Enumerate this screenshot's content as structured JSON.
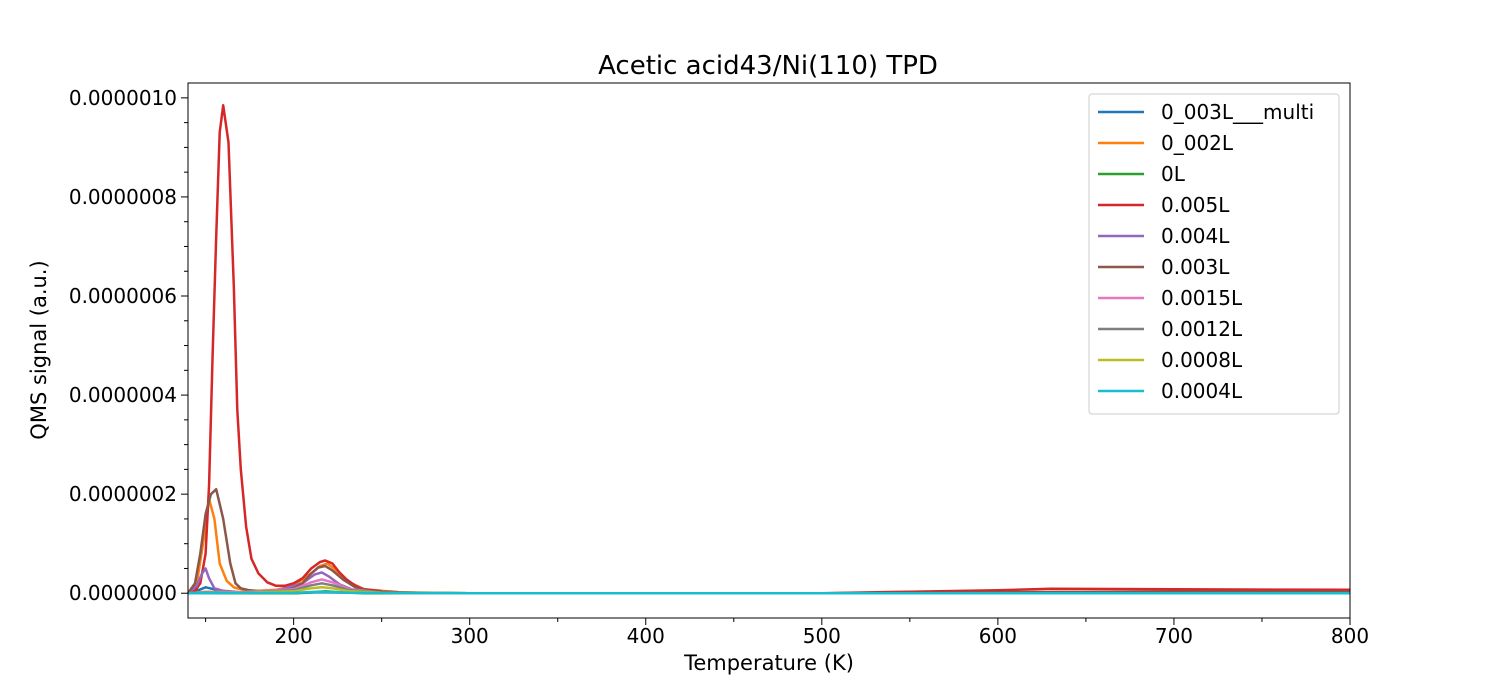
{
  "chart_data": {
    "type": "line",
    "title": "Acetic acid43/Ni(110) TPD",
    "xlabel": "Temperature (K)",
    "ylabel": "QMS signal (a.u.)",
    "xlim": [
      140,
      800
    ],
    "ylim": [
      -5e-08,
      1.03e-06
    ],
    "xticks": [
      200,
      300,
      400,
      500,
      600,
      700,
      800
    ],
    "xtick_labels": [
      "200",
      "300",
      "400",
      "500",
      "600",
      "700",
      "800"
    ],
    "yticks": [
      0,
      2e-07,
      4e-07,
      6e-07,
      8e-07,
      1e-06
    ],
    "ytick_labels": [
      "0.0000000",
      "0.0000002",
      "0.0000004",
      "0.0000006",
      "0.0000008",
      "0.0000010"
    ],
    "grid": false,
    "legend_position": "top-right",
    "series": [
      {
        "name": "0_003L___multi",
        "color": "#1f77b4",
        "x": [
          140,
          145,
          150,
          155,
          160,
          170,
          200,
          215,
          230,
          260,
          300,
          400,
          500,
          600,
          700,
          800
        ],
        "y": [
          0,
          5e-09,
          1.2e-08,
          8e-09,
          3e-09,
          1e-09,
          0,
          2e-09,
          1e-09,
          0,
          0,
          0,
          0,
          0,
          0,
          0
        ]
      },
      {
        "name": "0_002L",
        "color": "#ff7f0e",
        "x": [
          140,
          145,
          149,
          152,
          155,
          158,
          162,
          166,
          172,
          180,
          190,
          200,
          210,
          215,
          219,
          223,
          230,
          240,
          260,
          300,
          400,
          500,
          800
        ],
        "y": [
          0,
          2e-08,
          1.1e-07,
          1.9e-07,
          1.5e-07,
          6e-08,
          2.5e-08,
          1.2e-08,
          6e-09,
          5e-09,
          7e-09,
          1.5e-08,
          4e-08,
          5.5e-08,
          6e-08,
          5e-08,
          2.5e-08,
          8e-09,
          2e-09,
          0,
          0,
          0,
          0
        ]
      },
      {
        "name": "0L",
        "color": "#2ca02c",
        "x": [
          140,
          200,
          210,
          218,
          226,
          240,
          300,
          800
        ],
        "y": [
          0,
          0,
          2e-09,
          4e-09,
          2e-09,
          0,
          0,
          0
        ]
      },
      {
        "name": "0.005L",
        "color": "#d62728",
        "x": [
          140,
          144,
          147,
          150,
          152,
          154,
          156,
          158,
          160,
          163,
          166,
          168,
          170,
          173,
          176,
          180,
          185,
          190,
          195,
          200,
          205,
          210,
          215,
          218,
          222,
          226,
          230,
          235,
          240,
          250,
          260,
          280,
          300,
          400,
          500,
          550,
          600,
          630,
          700,
          800
        ],
        "y": [
          0,
          5e-09,
          2e-08,
          8e-08,
          2.2e-07,
          4.8e-07,
          7.2e-07,
          9.3e-07,
          9.85e-07,
          9.1e-07,
          6.2e-07,
          3.7e-07,
          2.5e-07,
          1.35e-07,
          7e-08,
          4e-08,
          2.2e-08,
          1.5e-08,
          1.5e-08,
          2e-08,
          3e-08,
          5e-08,
          6.3e-08,
          6.6e-08,
          6e-08,
          4.2e-08,
          2.8e-08,
          1.5e-08,
          8e-09,
          4e-09,
          2e-09,
          0,
          0,
          0,
          0,
          3e-09,
          6e-09,
          9e-09,
          8e-09,
          7e-09
        ]
      },
      {
        "name": "0.004L",
        "color": "#9467bd",
        "x": [
          140,
          145,
          148,
          150,
          152,
          155,
          160,
          170,
          190,
          205,
          212,
          216,
          220,
          226,
          235,
          250,
          300,
          800
        ],
        "y": [
          0,
          1.5e-08,
          4e-08,
          5e-08,
          3e-08,
          1e-08,
          5e-09,
          2e-09,
          5e-09,
          2e-08,
          3.8e-08,
          4.2e-08,
          3.4e-08,
          1.8e-08,
          5e-09,
          1e-09,
          0,
          0
        ]
      },
      {
        "name": "0.003L",
        "color": "#8c564b",
        "x": [
          140,
          144,
          147,
          150,
          153,
          156,
          160,
          164,
          167,
          170,
          175,
          180,
          190,
          200,
          205,
          210,
          214,
          218,
          222,
          228,
          235,
          245,
          260,
          300,
          400,
          500,
          600,
          700,
          800
        ],
        "y": [
          0,
          2e-08,
          8e-08,
          1.6e-07,
          2e-07,
          2.1e-07,
          1.5e-07,
          6e-08,
          2e-08,
          1e-08,
          6e-09,
          4e-09,
          4e-09,
          1e-08,
          2e-08,
          4e-08,
          5.2e-08,
          5.5e-08,
          4.6e-08,
          2.8e-08,
          1.2e-08,
          4e-09,
          1e-09,
          0,
          0,
          0,
          2e-09,
          3e-09,
          3e-09
        ]
      },
      {
        "name": "0.0015L",
        "color": "#e377c2",
        "x": [
          140,
          150,
          170,
          200,
          210,
          216,
          222,
          232,
          250,
          300,
          800
        ],
        "y": [
          0,
          3e-09,
          2e-09,
          8e-09,
          2.2e-08,
          2.8e-08,
          2.2e-08,
          8e-09,
          1e-09,
          0,
          0
        ]
      },
      {
        "name": "0.0012L",
        "color": "#7f7f7f",
        "x": [
          140,
          150,
          170,
          200,
          210,
          216,
          222,
          232,
          250,
          300,
          800
        ],
        "y": [
          0,
          2e-09,
          1e-09,
          6e-09,
          1.6e-08,
          2e-08,
          1.6e-08,
          6e-09,
          1e-09,
          0,
          0
        ]
      },
      {
        "name": "0.0008L",
        "color": "#bcbd22",
        "x": [
          140,
          150,
          170,
          200,
          210,
          216,
          222,
          232,
          250,
          300,
          800
        ],
        "y": [
          0,
          1e-09,
          1e-09,
          4e-09,
          1e-08,
          1.2e-08,
          1e-08,
          4e-09,
          1e-09,
          0,
          0
        ]
      },
      {
        "name": "0.0004L",
        "color": "#17becf",
        "x": [
          140,
          200,
          216,
          232,
          300,
          800
        ],
        "y": [
          0,
          1e-09,
          3e-09,
          1e-09,
          0,
          0
        ]
      }
    ]
  }
}
